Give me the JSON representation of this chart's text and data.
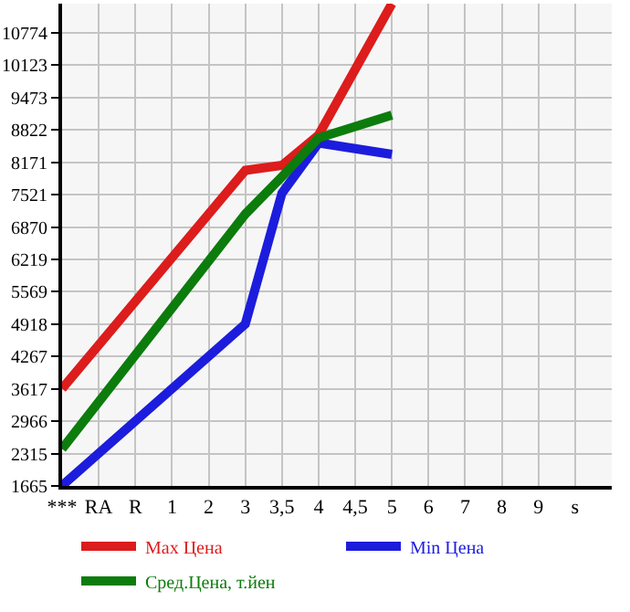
{
  "chart_data": {
    "type": "line",
    "categories": [
      "***",
      "RA",
      "R",
      "1",
      "2",
      "3",
      "3,5",
      "4",
      "4,5",
      "5",
      "6",
      "7",
      "8",
      "9",
      "s"
    ],
    "series": [
      {
        "name": "Max Цена",
        "color": "#dd1c1c",
        "values": [
          3620,
          null,
          null,
          null,
          null,
          8010,
          8110,
          8720,
          null,
          11360,
          null,
          null,
          null,
          null,
          null
        ]
      },
      {
        "name": "Min Цена",
        "color": "#1c1cdd",
        "values": [
          1670,
          null,
          null,
          null,
          null,
          4920,
          7550,
          8560,
          null,
          8330,
          null,
          null,
          null,
          null,
          null
        ]
      },
      {
        "name": "Сред.Цена, т.йен",
        "color": "#0c7c0c",
        "values": [
          2410,
          null,
          null,
          null,
          null,
          7130,
          7880,
          8660,
          null,
          9120,
          null,
          null,
          null,
          null,
          null
        ]
      }
    ],
    "ylim": [
      1665,
      11360
    ],
    "yticks": [
      1665,
      2315,
      2966,
      3617,
      4267,
      4918,
      5569,
      6219,
      6870,
      7521,
      8171,
      8822,
      9473,
      10123,
      10774
    ],
    "grid": true,
    "legend": "bottom",
    "marker": "none",
    "line_style": "solid"
  }
}
